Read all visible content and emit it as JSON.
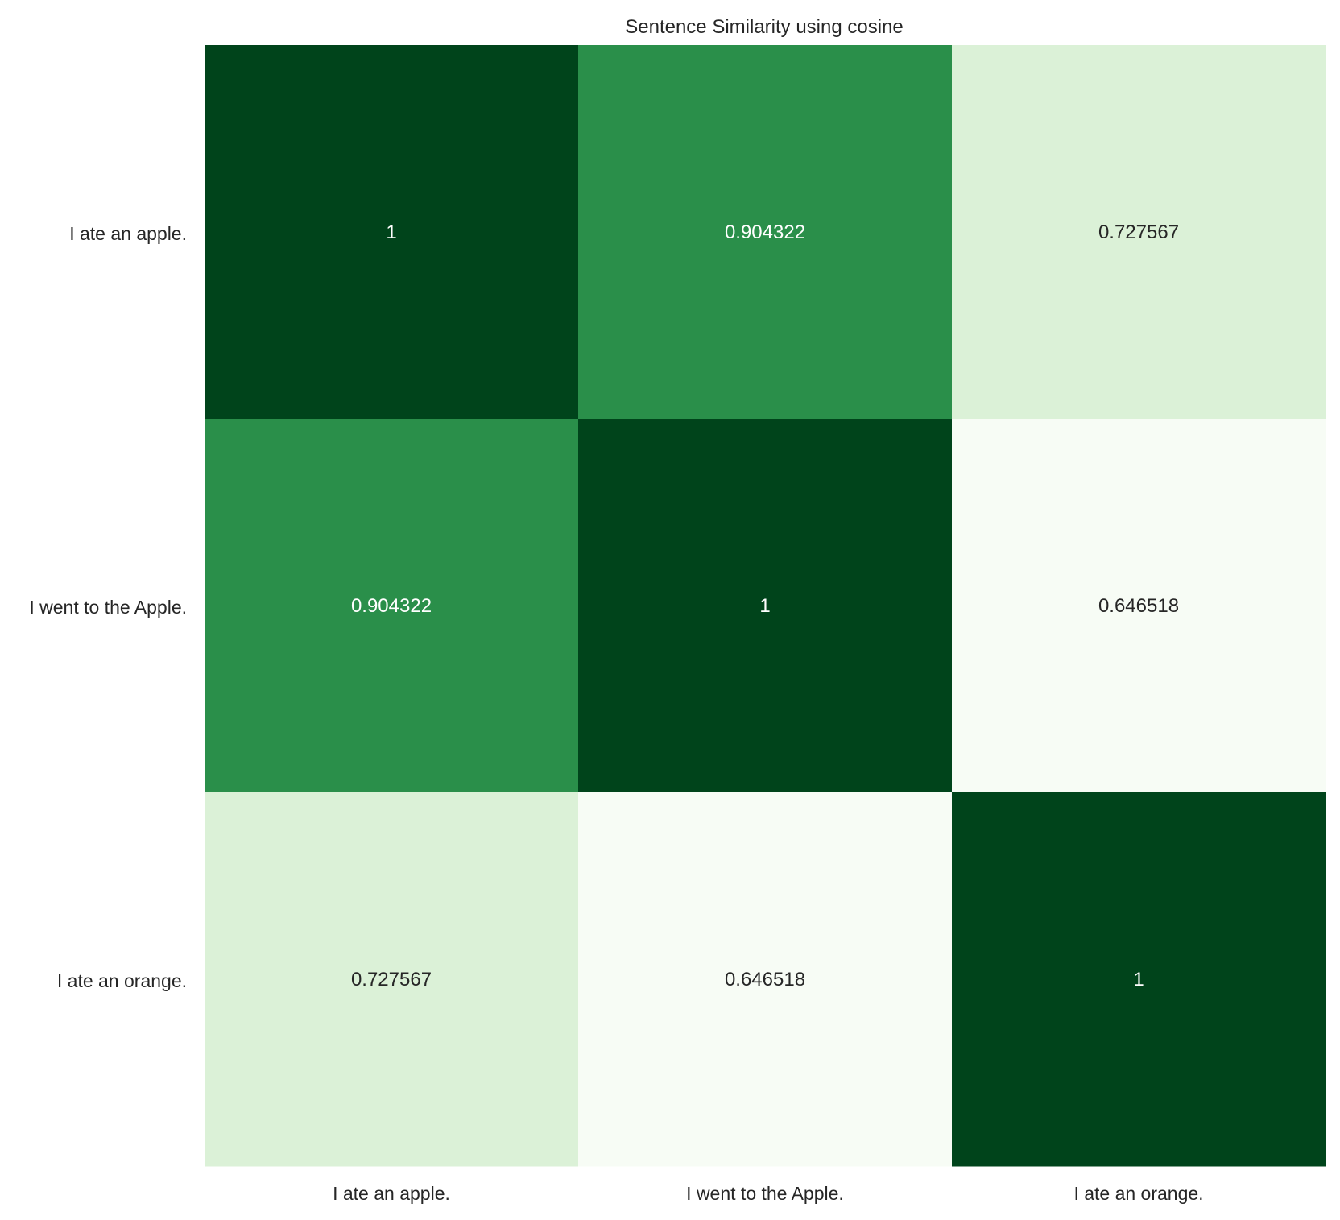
{
  "chart_data": {
    "type": "heatmap",
    "title": "Sentence Similarity using cosine",
    "xlabel": "",
    "ylabel": "",
    "x_categories": [
      "I ate an apple.",
      "I went to the Apple.",
      "I ate an orange."
    ],
    "y_categories": [
      "I ate an apple.",
      "I went to the Apple.",
      "I ate an orange."
    ],
    "values": [
      [
        1,
        0.904322,
        0.727567
      ],
      [
        0.904322,
        1,
        0.646518
      ],
      [
        0.727567,
        0.646518,
        1
      ]
    ],
    "value_labels": [
      [
        "1",
        "0.904322",
        "0.727567"
      ],
      [
        "0.904322",
        "1",
        "0.646518"
      ],
      [
        "0.727567",
        "0.646518",
        "1"
      ]
    ],
    "colormap": "Greens",
    "colors": {
      "low": "#f7fcf5",
      "mid_low": "#cdebc7",
      "mid_high": "#2b924c",
      "high": "#00441b",
      "text_dark": "#262626",
      "text_light": "#ffffff"
    },
    "colorbar": false,
    "grid": false
  }
}
